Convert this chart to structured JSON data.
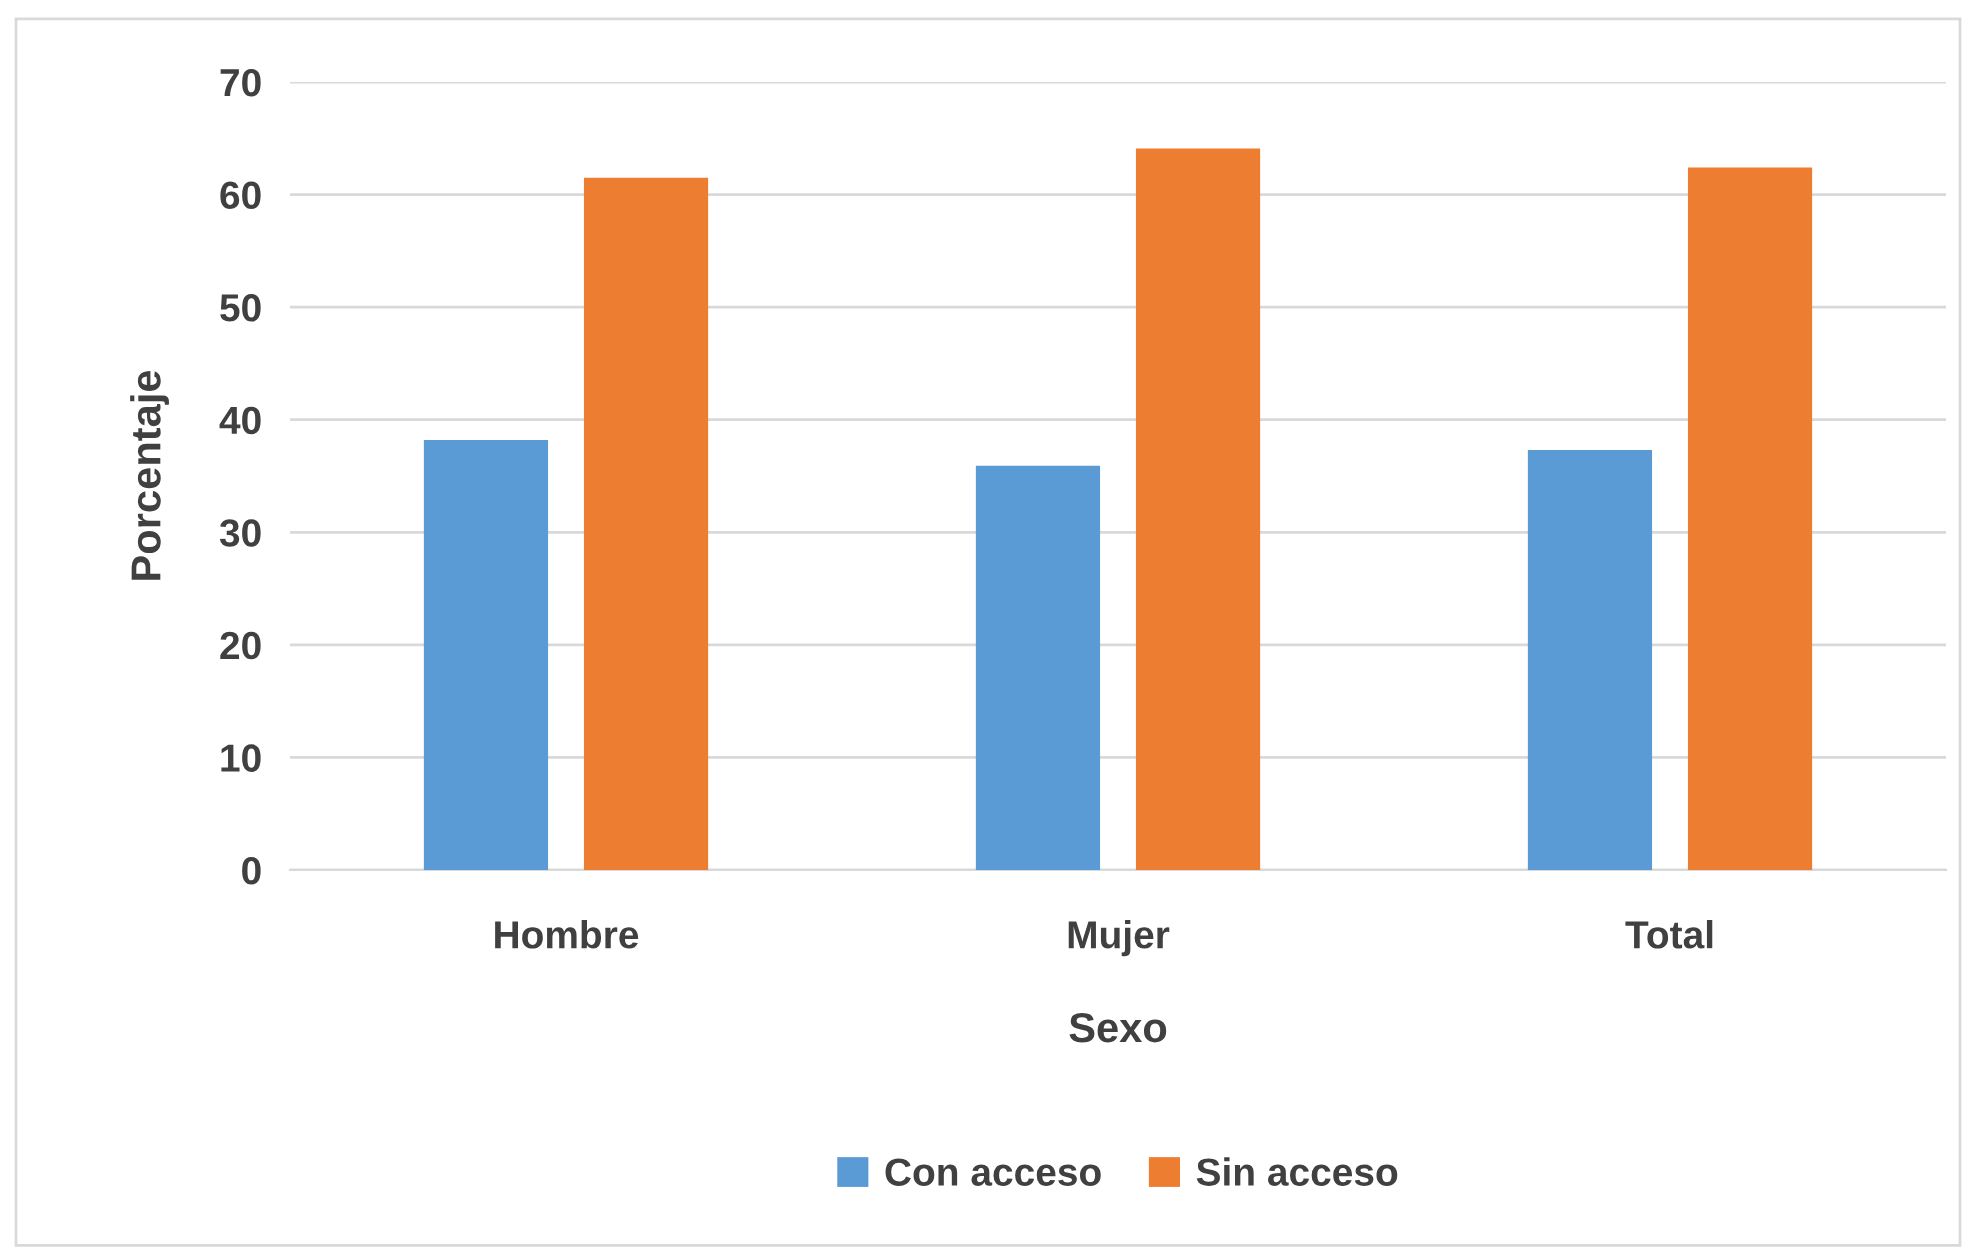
{
  "chart_data": {
    "type": "bar",
    "xlabel": "Sexo",
    "ylabel": "Porcentaje",
    "categories": [
      "Hombre",
      "Mujer",
      "Total"
    ],
    "series": [
      {
        "name": "Con acceso",
        "color": "#5b9bd5",
        "values": [
          38.2,
          35.9,
          37.3
        ]
      },
      {
        "name": "Sin acceso",
        "color": "#ed7d31",
        "values": [
          61.5,
          64.1,
          62.4
        ]
      }
    ],
    "ylim": [
      0,
      70
    ],
    "yticks": [
      0,
      10,
      20,
      30,
      40,
      50,
      60,
      70
    ],
    "grid": "y",
    "legend": "bottom"
  }
}
